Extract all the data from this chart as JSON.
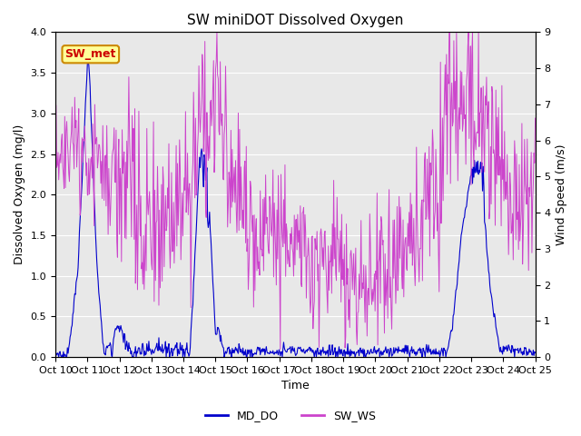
{
  "title": "SW miniDOT Dissolved Oxygen",
  "ylabel_left": "Dissolved Oxygen (mg/l)",
  "ylabel_right": "Wind Speed (m/s)",
  "xlabel": "Time",
  "ylim_left": [
    0,
    4.0
  ],
  "ylim_right": [
    0,
    9.0
  ],
  "yticks_left": [
    0.0,
    0.5,
    1.0,
    1.5,
    2.0,
    2.5,
    3.0,
    3.5,
    4.0
  ],
  "yticks_right": [
    0.0,
    1.0,
    2.0,
    3.0,
    4.0,
    5.0,
    6.0,
    7.0,
    8.0,
    9.0
  ],
  "xtick_labels": [
    "Oct 10",
    "Oct 11",
    "Oct 12",
    "Oct 13",
    "Oct 14",
    "Oct 15",
    "Oct 16",
    "Oct 17",
    "Oct 18",
    "Oct 19",
    "Oct 20",
    "Oct 21",
    "Oct 22",
    "Oct 23",
    "Oct 24",
    "Oct 25"
  ],
  "color_do": "#0000cc",
  "color_ws": "#cc44cc",
  "legend_labels": [
    "MD_DO",
    "SW_WS"
  ],
  "annotation_text": "SW_met",
  "annotation_facecolor": "#ffff99",
  "annotation_edgecolor": "#cc8800",
  "annotation_textcolor": "#cc0000",
  "background_color": "#e8e8e8",
  "title_fontsize": 11,
  "label_fontsize": 9,
  "tick_fontsize": 8,
  "legend_fontsize": 9
}
